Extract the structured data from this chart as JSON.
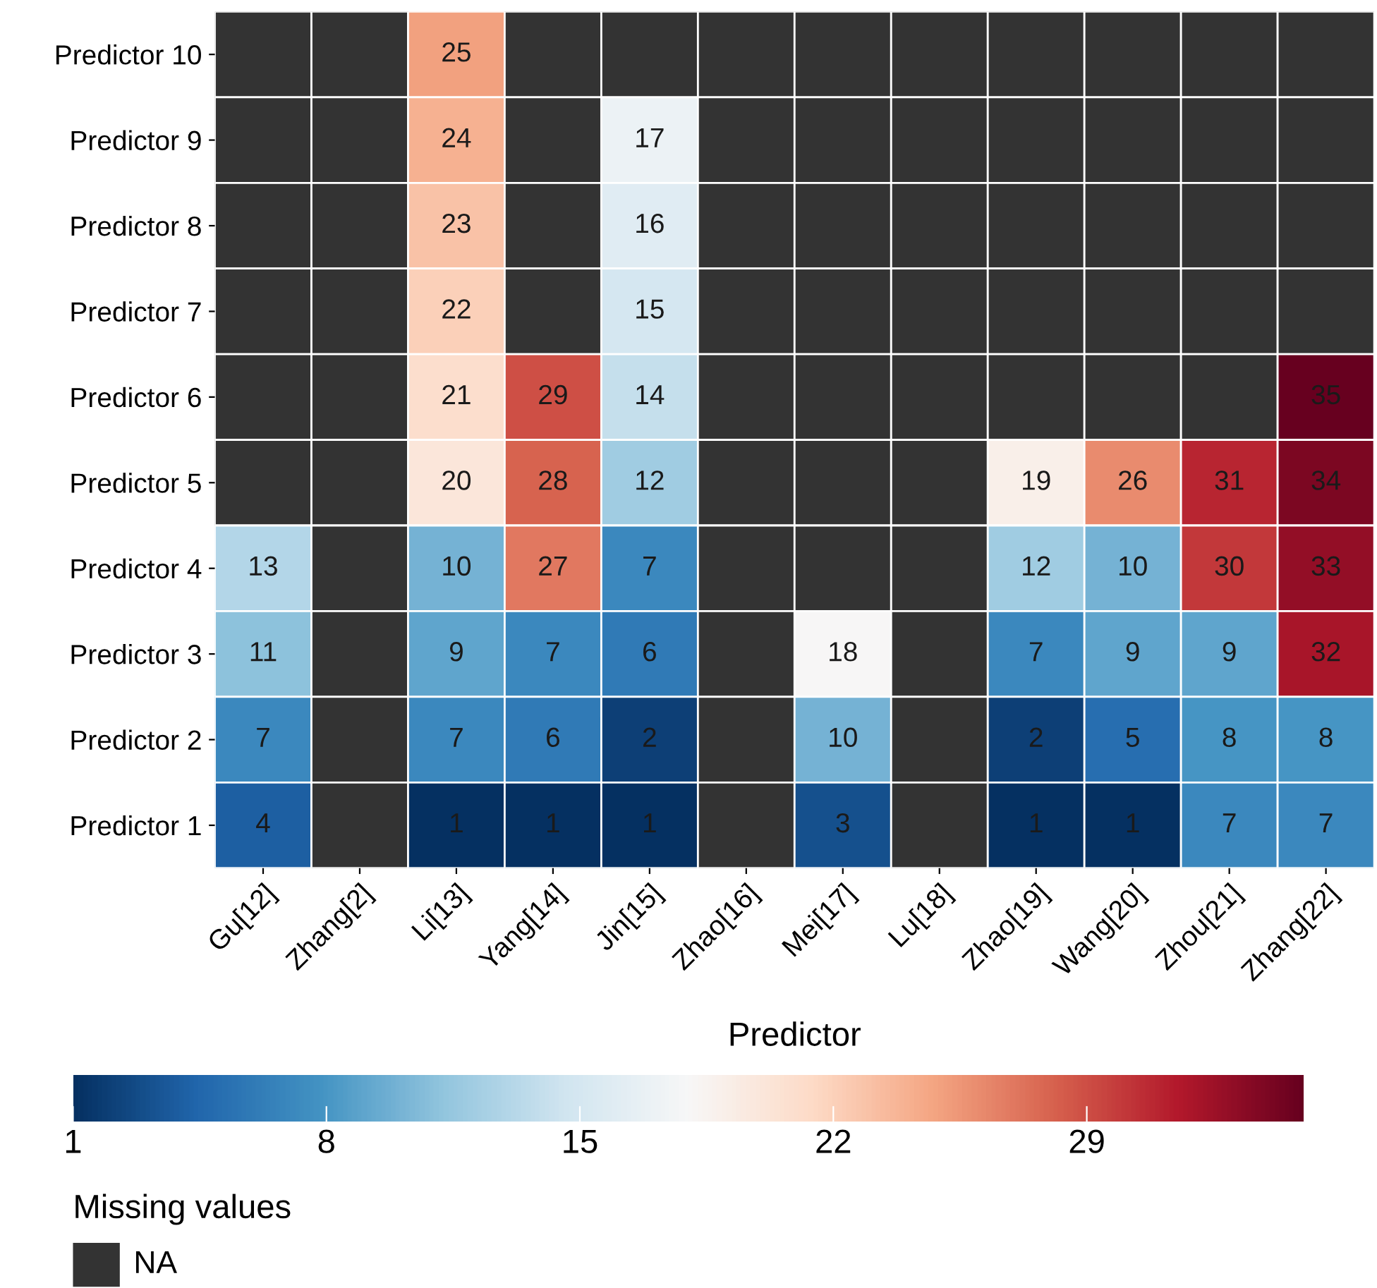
{
  "chart_data": {
    "type": "heatmap",
    "xlabel": "Predictor",
    "categories": [
      "Gu[12]",
      "Zhang[2]",
      "Li[13]",
      "Yang[14]",
      "Jin[15]",
      "Zhao[16]",
      "Mei[17]",
      "Lu[18]",
      "Zhao[19]",
      "Wang[20]",
      "Zhou[21]",
      "Zhang[22]"
    ],
    "y_categories": [
      "Predictor 10",
      "Predictor 9",
      "Predictor 8",
      "Predictor 7",
      "Predictor 6",
      "Predictor 5",
      "Predictor 4",
      "Predictor 3",
      "Predictor 2",
      "Predictor 1"
    ],
    "cells": [
      [
        null,
        null,
        25,
        null,
        null,
        null,
        null,
        null,
        null,
        null,
        null,
        null
      ],
      [
        null,
        null,
        24,
        null,
        17,
        null,
        null,
        null,
        null,
        null,
        null,
        null
      ],
      [
        null,
        null,
        23,
        null,
        16,
        null,
        null,
        null,
        null,
        null,
        null,
        null
      ],
      [
        null,
        null,
        22,
        null,
        15,
        null,
        null,
        null,
        null,
        null,
        null,
        null
      ],
      [
        null,
        null,
        21,
        29,
        14,
        null,
        null,
        null,
        null,
        null,
        null,
        35
      ],
      [
        null,
        null,
        20,
        28,
        12,
        null,
        null,
        null,
        19,
        26,
        31,
        34
      ],
      [
        13,
        null,
        10,
        27,
        7,
        null,
        null,
        null,
        12,
        10,
        30,
        33
      ],
      [
        11,
        null,
        9,
        7,
        6,
        null,
        18,
        null,
        7,
        9,
        9,
        32
      ],
      [
        7,
        null,
        7,
        6,
        2,
        null,
        10,
        null,
        2,
        5,
        8,
        8
      ],
      [
        4,
        null,
        1,
        1,
        1,
        null,
        3,
        null,
        1,
        1,
        7,
        7
      ]
    ],
    "clim": [
      1,
      35
    ],
    "cticks": [
      1,
      8,
      15,
      22,
      29
    ],
    "data_labels": true,
    "legend_title": "Missing values",
    "annotations": [
      "NA"
    ]
  }
}
